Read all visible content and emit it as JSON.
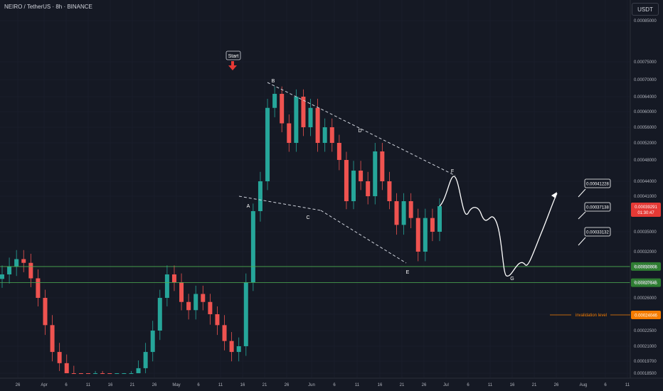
{
  "header": {
    "title": "NEIRO / TetherUS · 8h · BINANCE",
    "unit": "USDT"
  },
  "colors": {
    "bg": "#151924",
    "up": "#26a69a",
    "down": "#ef5350",
    "grid": "#1e2230",
    "axisText": "#b2b5be"
  },
  "chart_data": {
    "type": "candlestick",
    "y_ticks": [
      "0.00085000",
      "0.00075000",
      "0.00070000",
      "0.00064000",
      "0.00060000",
      "0.00056000",
      "0.00052000",
      "0.00048000",
      "0.00044000",
      "0.00041000",
      "0.00038000",
      "0.00035000",
      "0.00032000",
      "0.00030000",
      "0.00028000",
      "0.00026000",
      "0.00024000",
      "0.00022500",
      "0.00021000",
      "0.00019700",
      "0.00018500"
    ],
    "x_ticks": [
      "26",
      "Apr",
      "6",
      "11",
      "16",
      "21",
      "26",
      "May",
      "6",
      "11",
      "16",
      "21",
      "26",
      "Jun",
      "6",
      "11",
      "16",
      "21",
      "26",
      "Jul",
      "6",
      "11",
      "16",
      "21",
      "26",
      "Aug",
      "6",
      "11"
    ],
    "price_label": {
      "value": "0.00039291",
      "countdown": "01:30:47"
    },
    "support_levels": [
      {
        "value": "0.00030006",
        "price": 0.00030006,
        "color": "#4caf50"
      },
      {
        "value": "0.00027945",
        "price": 0.00027945,
        "color": "#4caf50"
      }
    ],
    "invalidation": {
      "label": "invalidation level",
      "value": "0.00024046",
      "price": 0.00024046,
      "color": "#f57c00"
    },
    "annotations": [
      {
        "text": "Start"
      },
      {
        "text": "A"
      },
      {
        "text": "B"
      },
      {
        "text": "C"
      },
      {
        "text": "D"
      },
      {
        "text": "E"
      },
      {
        "text": "F"
      },
      {
        "text": "G"
      }
    ],
    "targets": [
      {
        "value": "0.00041228"
      },
      {
        "value": "0.00037138"
      },
      {
        "value": "0.00033132"
      }
    ],
    "candles_close": [
      0.00029,
      0.0003,
      0.00031,
      0.000305,
      0.000285,
      0.00026,
      0.00023,
      0.000205,
      0.000195,
      0.000185,
      0.000178,
      0.000172,
      0.000168,
      0.00018,
      0.000176,
      0.000175,
      0.000176,
      0.000178,
      0.00018,
      0.00019,
      0.000205,
      0.000225,
      0.00026,
      0.00029,
      0.00028,
      0.000255,
      0.000245,
      0.000265,
      0.000255,
      0.00024,
      0.00023,
      0.000215,
      0.000205,
      0.00021,
      0.00028,
      0.00038,
      0.00044,
      0.00061,
      0.00065,
      0.00057,
      0.00052,
      0.00064,
      0.00056,
      0.00061,
      0.00052,
      0.00056,
      0.00052,
      0.00048,
      0.0004,
      0.00046,
      0.00044,
      0.00041,
      0.0005,
      0.00044,
      0.0004,
      0.00036,
      0.0004,
      0.00037,
      0.00032,
      0.00037,
      0.00035,
      0.00039
    ]
  }
}
